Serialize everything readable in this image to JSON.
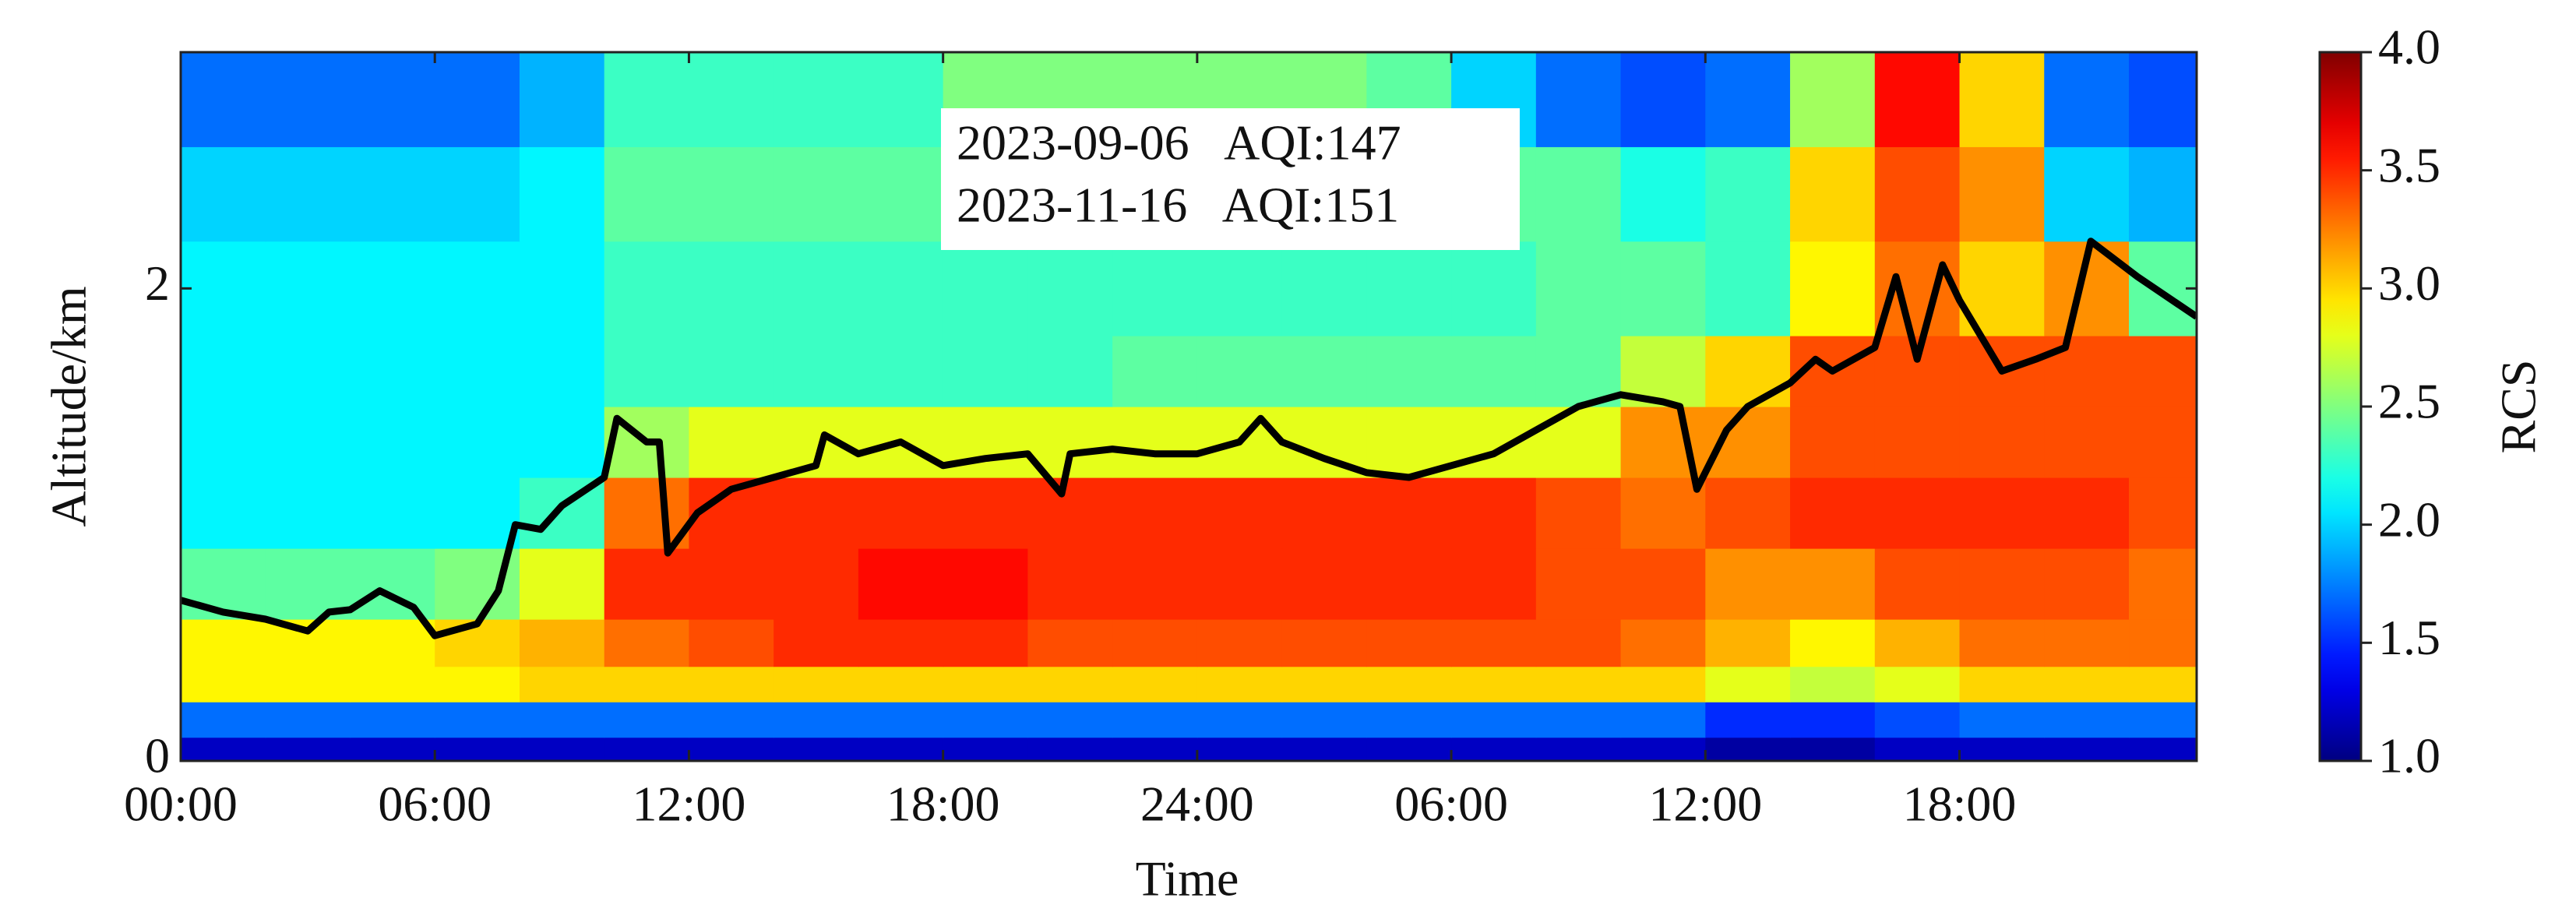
{
  "chart_data": {
    "type": "heatmap",
    "xlabel": "Time",
    "ylabel": "Altitude/km",
    "colorbar_label": "RCS",
    "annotations": [
      "2023-09-06   AQI:147",
      "2023-11-16   AQI:151"
    ],
    "colormap": "jet",
    "xlim": [
      0,
      47.6
    ],
    "ylim": [
      0,
      3
    ],
    "xticks": [
      {
        "value": 0,
        "label": "00:00"
      },
      {
        "value": 6,
        "label": "06:00"
      },
      {
        "value": 12,
        "label": "12:00"
      },
      {
        "value": 18,
        "label": "18:00"
      },
      {
        "value": 24,
        "label": "24:00"
      },
      {
        "value": 30,
        "label": "06:00"
      },
      {
        "value": 36,
        "label": "12:00"
      },
      {
        "value": 42,
        "label": "18:00"
      }
    ],
    "yticks": [
      0,
      2
    ],
    "clim": [
      1,
      4
    ],
    "cticks": [
      {
        "value": 1,
        "label": "1.0"
      },
      {
        "value": 1.5,
        "label": "1.5"
      },
      {
        "value": 2,
        "label": "2.0"
      },
      {
        "value": 2.5,
        "label": "2.5"
      },
      {
        "value": 3,
        "label": "3.0"
      },
      {
        "value": 3.5,
        "label": "3.5"
      },
      {
        "value": 4,
        "label": "4.0"
      }
    ],
    "x_edges": [
      0,
      2,
      4,
      6,
      8,
      10,
      12,
      14,
      16,
      18,
      20,
      22,
      24,
      26,
      28,
      30,
      32,
      34,
      36,
      38,
      40,
      42,
      44,
      46,
      47.6
    ],
    "y_edges": [
      0,
      0.1,
      0.25,
      0.4,
      0.6,
      0.9,
      1.2,
      1.5,
      1.8,
      2.2,
      2.6,
      3.0
    ],
    "z": [
      [
        1.2,
        1.2,
        1.2,
        1.2,
        1.2,
        1.2,
        1.2,
        1.2,
        1.2,
        1.2,
        1.2,
        1.2,
        1.2,
        1.2,
        1.2,
        1.2,
        1.2,
        1.2,
        1.1,
        1.1,
        1.2,
        1.2,
        1.2,
        1.2
      ],
      [
        1.7,
        1.7,
        1.7,
        1.7,
        1.7,
        1.7,
        1.7,
        1.7,
        1.7,
        1.7,
        1.7,
        1.7,
        1.7,
        1.7,
        1.7,
        1.7,
        1.7,
        1.7,
        1.5,
        1.5,
        1.6,
        1.7,
        1.7,
        1.7
      ],
      [
        2.9,
        2.9,
        2.9,
        2.9,
        3.0,
        3.0,
        3.0,
        3.0,
        3.0,
        3.0,
        3.0,
        3.0,
        3.0,
        3.0,
        3.0,
        3.0,
        3.0,
        3.0,
        2.8,
        2.7,
        2.8,
        3.0,
        3.0,
        3.0
      ],
      [
        2.9,
        2.9,
        2.9,
        3.0,
        3.1,
        3.3,
        3.4,
        3.5,
        3.5,
        3.5,
        3.4,
        3.4,
        3.4,
        3.4,
        3.4,
        3.4,
        3.4,
        3.3,
        3.1,
        2.9,
        3.1,
        3.3,
        3.3,
        3.3
      ],
      [
        2.4,
        2.4,
        2.4,
        2.5,
        2.8,
        3.5,
        3.5,
        3.5,
        3.6,
        3.6,
        3.5,
        3.5,
        3.5,
        3.5,
        3.5,
        3.5,
        3.4,
        3.4,
        3.2,
        3.2,
        3.4,
        3.4,
        3.4,
        3.3
      ],
      [
        2.1,
        2.1,
        2.1,
        2.1,
        2.3,
        3.3,
        3.5,
        3.5,
        3.5,
        3.5,
        3.5,
        3.5,
        3.5,
        3.5,
        3.5,
        3.5,
        3.4,
        3.3,
        3.4,
        3.5,
        3.5,
        3.5,
        3.5,
        3.4
      ],
      [
        2.1,
        2.1,
        2.1,
        2.1,
        2.1,
        2.6,
        2.8,
        2.8,
        2.8,
        2.8,
        2.8,
        2.8,
        2.8,
        2.8,
        2.8,
        2.8,
        2.8,
        3.2,
        3.2,
        3.4,
        3.4,
        3.4,
        3.4,
        3.4
      ],
      [
        2.1,
        2.1,
        2.1,
        2.1,
        2.1,
        2.3,
        2.3,
        2.3,
        2.3,
        2.3,
        2.3,
        2.4,
        2.4,
        2.4,
        2.4,
        2.4,
        2.4,
        2.7,
        3.0,
        3.4,
        3.4,
        3.4,
        3.4,
        3.4
      ],
      [
        2.1,
        2.1,
        2.1,
        2.1,
        2.1,
        2.3,
        2.3,
        2.3,
        2.3,
        2.3,
        2.3,
        2.3,
        2.3,
        2.3,
        2.3,
        2.3,
        2.4,
        2.4,
        2.3,
        2.9,
        3.3,
        3.0,
        3.2,
        2.4
      ],
      [
        2.0,
        2.0,
        2.0,
        2.0,
        2.1,
        2.4,
        2.4,
        2.4,
        2.4,
        2.5,
        2.5,
        2.5,
        2.5,
        2.5,
        2.5,
        2.4,
        2.4,
        2.2,
        2.3,
        3.0,
        3.4,
        3.2,
        2.0,
        1.9
      ],
      [
        1.7,
        1.7,
        1.7,
        1.7,
        1.9,
        2.3,
        2.3,
        2.3,
        2.3,
        2.5,
        2.5,
        2.5,
        2.5,
        2.5,
        2.4,
        2.0,
        1.7,
        1.6,
        1.7,
        2.6,
        3.6,
        3.0,
        1.7,
        1.6
      ]
    ],
    "line": {
      "color": "#000000",
      "x": [
        0,
        1,
        2,
        3,
        3.5,
        4,
        4.7,
        5.5,
        6,
        7,
        7.5,
        7.9,
        8.5,
        9,
        10,
        10.3,
        11,
        11.3,
        11.5,
        12.2,
        13,
        14,
        15,
        15.2,
        16,
        17,
        18,
        19,
        20,
        20.8,
        21,
        22,
        23,
        24,
        25,
        25.5,
        26,
        27,
        28,
        29,
        30,
        31,
        32,
        33,
        34,
        35,
        35.4,
        35.8,
        36.5,
        37,
        38,
        38.6,
        39,
        40,
        40.5,
        41,
        41.6,
        42,
        43,
        43.8,
        44.5,
        45.1,
        46.2,
        47.6
      ],
      "y": [
        0.68,
        0.63,
        0.6,
        0.55,
        0.63,
        0.64,
        0.72,
        0.65,
        0.53,
        0.58,
        0.72,
        1.0,
        0.98,
        1.08,
        1.2,
        1.45,
        1.35,
        1.35,
        0.88,
        1.05,
        1.15,
        1.2,
        1.25,
        1.38,
        1.3,
        1.35,
        1.25,
        1.28,
        1.3,
        1.13,
        1.3,
        1.32,
        1.3,
        1.3,
        1.35,
        1.45,
        1.35,
        1.28,
        1.22,
        1.2,
        1.25,
        1.3,
        1.4,
        1.5,
        1.55,
        1.52,
        1.5,
        1.15,
        1.4,
        1.5,
        1.6,
        1.7,
        1.65,
        1.75,
        2.05,
        1.7,
        2.1,
        1.95,
        1.65,
        1.7,
        1.75,
        2.2,
        2.05,
        1.88
      ]
    }
  }
}
